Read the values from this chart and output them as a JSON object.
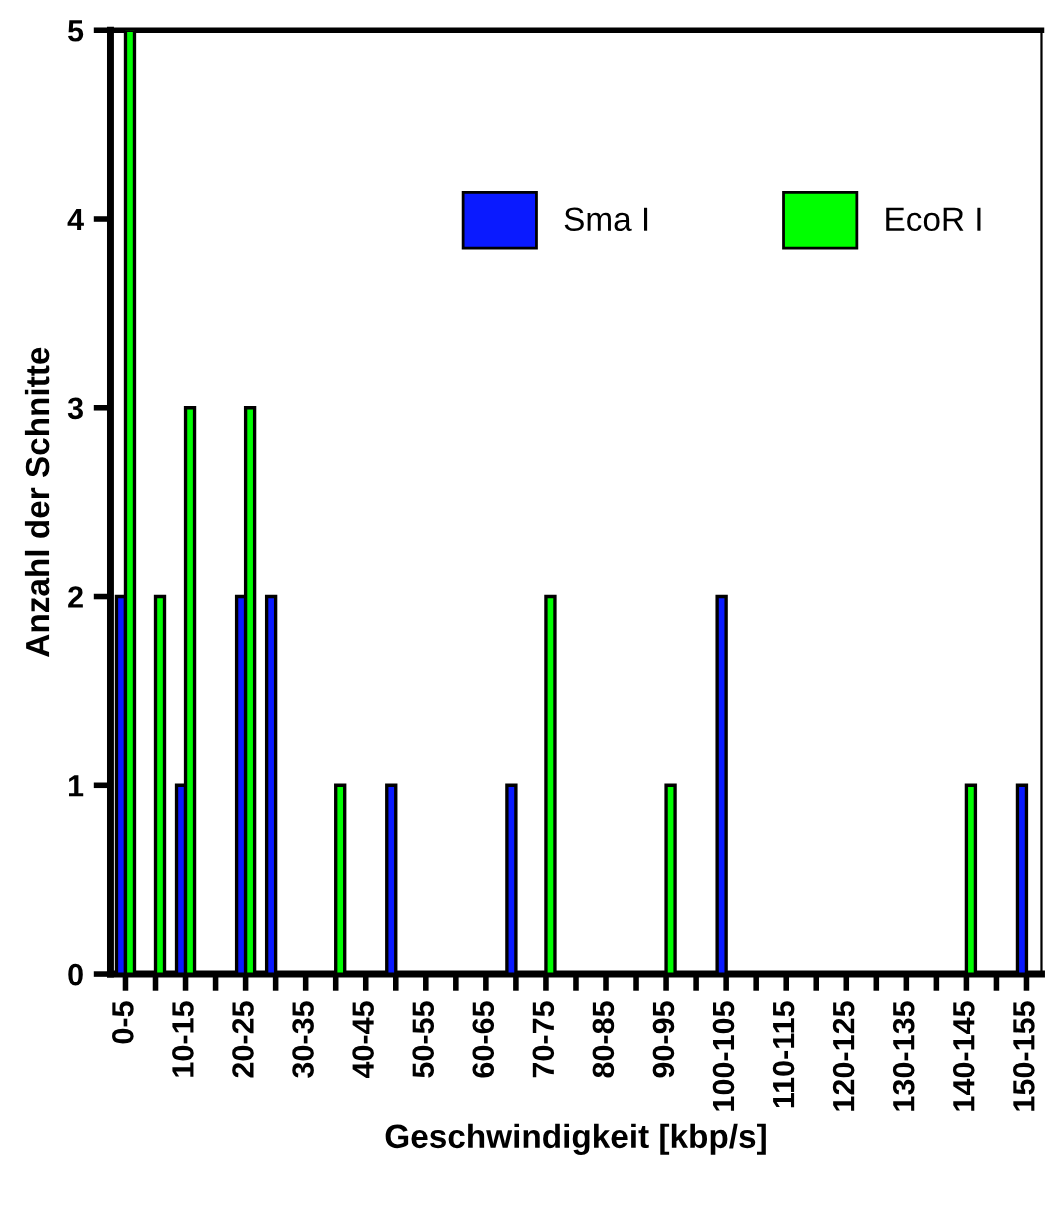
{
  "chart_data": {
    "type": "bar",
    "xlabel": "Geschwindigkeit [kbp/s]",
    "ylabel": "Anzahl der Schnitte",
    "categories": [
      "0-5",
      null,
      "10-15",
      null,
      "20-25",
      null,
      "30-35",
      null,
      "40-45",
      null,
      "50-55",
      null,
      "60-65",
      null,
      "70-75",
      null,
      "80-85",
      null,
      "90-95",
      null,
      "100-105",
      null,
      "110-115",
      null,
      "120-125",
      null,
      "130-135",
      null,
      "140-145",
      null,
      "150-155"
    ],
    "series": [
      {
        "name": "Sma I",
        "color": "#0a1aff",
        "values": [
          2,
          0,
          1,
          0,
          2,
          2,
          0,
          0,
          0,
          1,
          0,
          0,
          0,
          1,
          0,
          0,
          0,
          0,
          0,
          0,
          2,
          0,
          0,
          0,
          0,
          0,
          0,
          0,
          0,
          0,
          1
        ]
      },
      {
        "name": "EcoR I",
        "color": "#00ff00",
        "values": [
          5,
          2,
          3,
          0,
          3,
          0,
          0,
          1,
          0,
          0,
          0,
          0,
          0,
          0,
          2,
          0,
          0,
          0,
          1,
          0,
          0,
          0,
          0,
          0,
          0,
          0,
          0,
          0,
          1,
          0,
          0
        ]
      }
    ],
    "ylim": [
      0,
      5
    ],
    "yticks": [
      0,
      1,
      2,
      3,
      4,
      5
    ],
    "grid": false,
    "legend": "top right"
  }
}
